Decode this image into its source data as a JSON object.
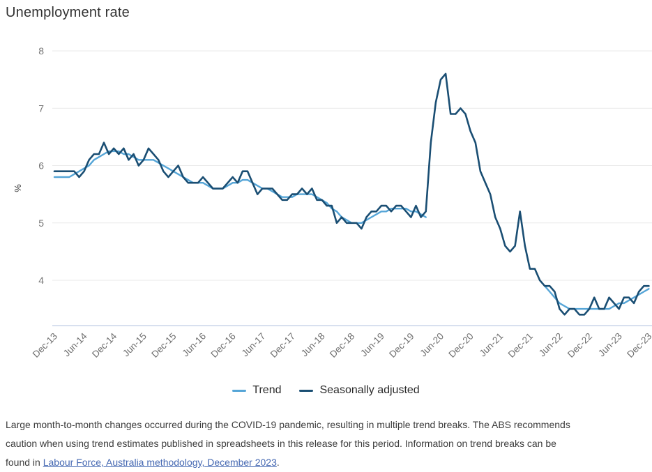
{
  "colors": {
    "trend": "#55A5D7",
    "seasonally_adjusted": "#1A4E73",
    "gridline": "#e9e9e9",
    "axis_baseline": "#ccd5ea",
    "link": "#4568b2"
  },
  "chart_data": {
    "type": "line",
    "title": "Unemployment rate",
    "ylabel": "%",
    "ylim": [
      3.2,
      8
    ],
    "y_ticks": [
      8,
      7,
      6,
      5,
      4
    ],
    "grid": "horizontal gridlines only",
    "legend_position": "bottom-center",
    "x_frequency": "monthly",
    "x_range": "Dec-13 to Dec-23, 121 monthly points, tick every 6 months",
    "x_tick_labels": [
      "Dec-13",
      "Jun-14",
      "Dec-14",
      "Jun-15",
      "Dec-15",
      "Jun-16",
      "Dec-16",
      "Jun-17",
      "Dec-17",
      "Jun-18",
      "Dec-18",
      "Jun-19",
      "Dec-19",
      "Jun-20",
      "Dec-20",
      "Jun-21",
      "Dec-21",
      "Jun-22",
      "Dec-22",
      "Jun-23",
      "Dec-23"
    ],
    "series": [
      {
        "name": "Trend",
        "color": "#55A5D7",
        "note": "gap Apr-2020 to Feb-2022 due to COVID-19 trend break",
        "values": [
          5.8,
          5.8,
          5.8,
          5.8,
          5.85,
          5.9,
          5.95,
          6.0,
          6.1,
          6.15,
          6.2,
          6.25,
          6.25,
          6.25,
          6.2,
          6.2,
          6.15,
          6.1,
          6.1,
          6.1,
          6.1,
          6.05,
          6.0,
          5.95,
          5.9,
          5.85,
          5.8,
          5.75,
          5.7,
          5.7,
          5.7,
          5.65,
          5.6,
          5.6,
          5.6,
          5.65,
          5.7,
          5.7,
          5.75,
          5.75,
          5.7,
          5.65,
          5.6,
          5.6,
          5.55,
          5.5,
          5.45,
          5.45,
          5.45,
          5.5,
          5.5,
          5.5,
          5.5,
          5.45,
          5.4,
          5.35,
          5.25,
          5.2,
          5.1,
          5.05,
          5.0,
          5.0,
          5.0,
          5.05,
          5.1,
          5.15,
          5.2,
          5.2,
          5.25,
          5.25,
          5.25,
          5.25,
          5.2,
          5.2,
          5.15,
          5.1,
          null,
          null,
          null,
          null,
          null,
          null,
          null,
          null,
          null,
          null,
          null,
          null,
          null,
          null,
          null,
          null,
          null,
          null,
          null,
          null,
          null,
          null,
          null,
          3.9,
          3.8,
          3.7,
          3.6,
          3.55,
          3.5,
          3.5,
          3.5,
          3.5,
          3.5,
          3.5,
          3.5,
          3.5,
          3.5,
          3.55,
          3.6,
          3.6,
          3.65,
          3.7,
          3.75,
          3.8,
          3.85
        ]
      },
      {
        "name": "Seasonally adjusted",
        "color": "#1A4E73",
        "values": [
          5.9,
          5.9,
          5.9,
          5.9,
          5.9,
          5.8,
          5.9,
          6.1,
          6.2,
          6.2,
          6.4,
          6.2,
          6.3,
          6.2,
          6.3,
          6.1,
          6.2,
          6.0,
          6.1,
          6.3,
          6.2,
          6.1,
          5.9,
          5.8,
          5.9,
          6.0,
          5.8,
          5.7,
          5.7,
          5.7,
          5.8,
          5.7,
          5.6,
          5.6,
          5.6,
          5.7,
          5.8,
          5.7,
          5.9,
          5.9,
          5.7,
          5.5,
          5.6,
          5.6,
          5.6,
          5.5,
          5.4,
          5.4,
          5.5,
          5.5,
          5.6,
          5.5,
          5.6,
          5.4,
          5.4,
          5.3,
          5.3,
          5.0,
          5.1,
          5.0,
          5.0,
          5.0,
          4.9,
          5.1,
          5.2,
          5.2,
          5.3,
          5.3,
          5.2,
          5.3,
          5.3,
          5.2,
          5.1,
          5.3,
          5.1,
          5.2,
          6.4,
          7.1,
          7.5,
          7.6,
          6.9,
          6.9,
          7.0,
          6.9,
          6.6,
          6.4,
          5.9,
          5.7,
          5.5,
          5.1,
          4.9,
          4.6,
          4.5,
          4.6,
          5.2,
          4.6,
          4.2,
          4.2,
          4.0,
          3.9,
          3.9,
          3.8,
          3.5,
          3.4,
          3.5,
          3.5,
          3.4,
          3.4,
          3.5,
          3.7,
          3.5,
          3.5,
          3.7,
          3.6,
          3.5,
          3.7,
          3.7,
          3.6,
          3.8,
          3.9,
          3.9
        ]
      }
    ]
  },
  "footer": {
    "lines": [
      "Large month-to-month changes occurred during the COVID-19 pandemic, resulting in multiple trend breaks. The ABS recommends",
      "caution when using trend estimates published in spreadsheets in this release for this period. Information on trend breaks can be",
      "found in "
    ],
    "link_text": "Labour Force, Australia methodology, December 2023",
    "link_suffix": "."
  }
}
